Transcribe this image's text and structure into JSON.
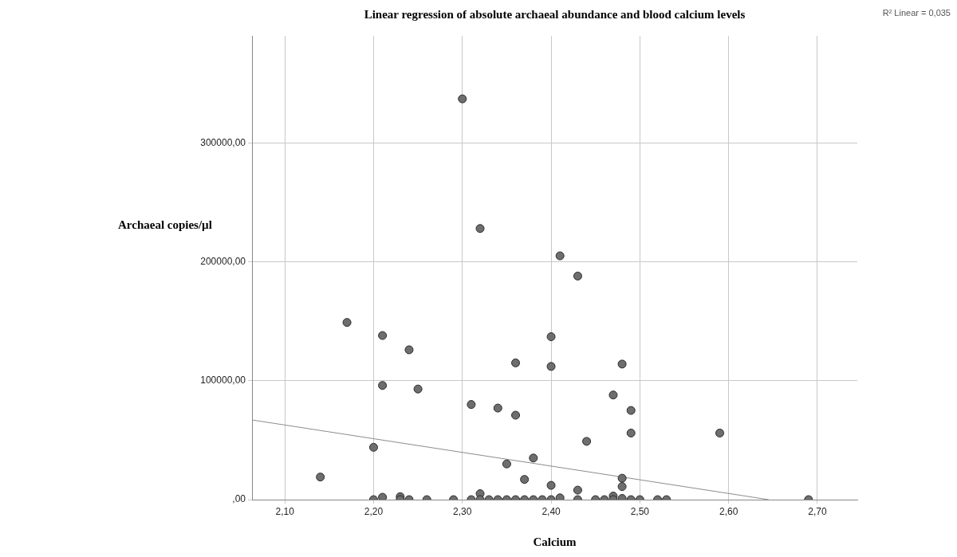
{
  "chart_data": {
    "type": "scatter",
    "title": "Linear regression of absolute archaeal abundance and blood calcium levels",
    "xlabel": "Calcium",
    "ylabel": "Archaeal copies/µl",
    "annotations": [
      "R² Linear = 0,035"
    ],
    "xlim": [
      2.063,
      2.745
    ],
    "ylim": [
      0,
      390000
    ],
    "xticks": [
      {
        "value": 2.1,
        "label": "2,10"
      },
      {
        "value": 2.2,
        "label": "2,20"
      },
      {
        "value": 2.3,
        "label": "2,30"
      },
      {
        "value": 2.4,
        "label": "2,40"
      },
      {
        "value": 2.5,
        "label": "2,50"
      },
      {
        "value": 2.6,
        "label": "2,60"
      },
      {
        "value": 2.7,
        "label": "2,70"
      }
    ],
    "yticks": [
      {
        "value": 0,
        "label": ",00"
      },
      {
        "value": 100000,
        "label": "100000,00"
      },
      {
        "value": 200000,
        "label": "200000,00"
      },
      {
        "value": 300000,
        "label": "300000,00"
      }
    ],
    "grid": true,
    "legend": false,
    "series": [
      {
        "marker": "circle",
        "color": "#6e6e6e",
        "x": [
          2.3,
          2.32,
          2.41,
          2.43,
          2.17,
          2.21,
          2.24,
          2.4,
          2.36,
          2.4,
          2.48,
          2.21,
          2.25,
          2.47,
          2.31,
          2.34,
          2.36,
          2.49,
          2.49,
          2.59,
          2.44,
          2.2,
          2.38,
          2.35,
          2.14,
          2.48,
          2.37,
          2.4,
          2.48,
          2.43,
          2.32,
          2.2,
          2.21,
          2.23,
          2.23,
          2.24,
          2.26,
          2.29,
          2.31,
          2.32,
          2.33,
          2.34,
          2.35,
          2.36,
          2.37,
          2.38,
          2.39,
          2.4,
          2.41,
          2.43,
          2.45,
          2.46,
          2.47,
          2.47,
          2.48,
          2.49,
          2.5,
          2.52,
          2.53,
          2.69
        ],
        "values": [
          337000,
          228000,
          205000,
          188000,
          149000,
          138000,
          126000,
          137000,
          115000,
          112000,
          114000,
          96000,
          93000,
          88000,
          80000,
          77000,
          71000,
          75000,
          56000,
          56000,
          49000,
          44000,
          35000,
          30000,
          19000,
          18000,
          17000,
          12000,
          11000,
          8000,
          5000,
          0,
          2000,
          2500,
          0,
          0,
          0,
          0,
          0,
          0,
          0,
          0,
          0,
          0,
          0,
          0,
          0,
          0,
          1500,
          0,
          0,
          0,
          3000,
          0,
          1000,
          0,
          0,
          0,
          0,
          0
        ]
      },
      {
        "type": "line",
        "marker": "none",
        "color": "#8c8c8c",
        "x": [
          2.063,
          2.645
        ],
        "values": [
          67000,
          0
        ]
      }
    ]
  }
}
